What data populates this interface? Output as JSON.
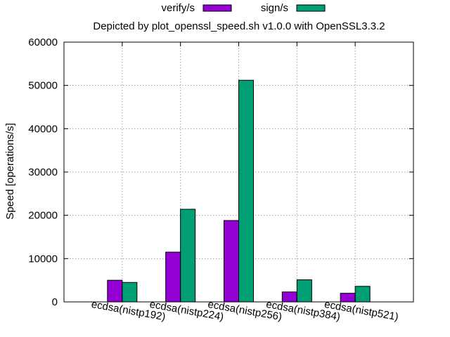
{
  "chart_data": {
    "type": "bar",
    "title": "Depicted by plot_openssl_speed.sh v1.0.0 with OpenSSL3.3.2",
    "xlabel": "",
    "ylabel": "Speed [operations/s]",
    "ylim": [
      0,
      60000
    ],
    "yticks": [
      "0",
      "10000",
      "20000",
      "30000",
      "40000",
      "50000",
      "60000"
    ],
    "grid": true,
    "legend_position": "top-center",
    "categories": [
      "ecdsa(nistp192)",
      "ecdsa(nistp224)",
      "ecdsa(nistp256)",
      "ecdsa(nistp384)",
      "ecdsa(nistp521)"
    ],
    "series": [
      {
        "name": "verify/s",
        "color": "#9400d3",
        "values": [
          5000,
          11500,
          18800,
          2300,
          2000
        ]
      },
      {
        "name": "sign/s",
        "color": "#009e73",
        "values": [
          4500,
          21400,
          51200,
          5100,
          3600
        ]
      }
    ]
  }
}
